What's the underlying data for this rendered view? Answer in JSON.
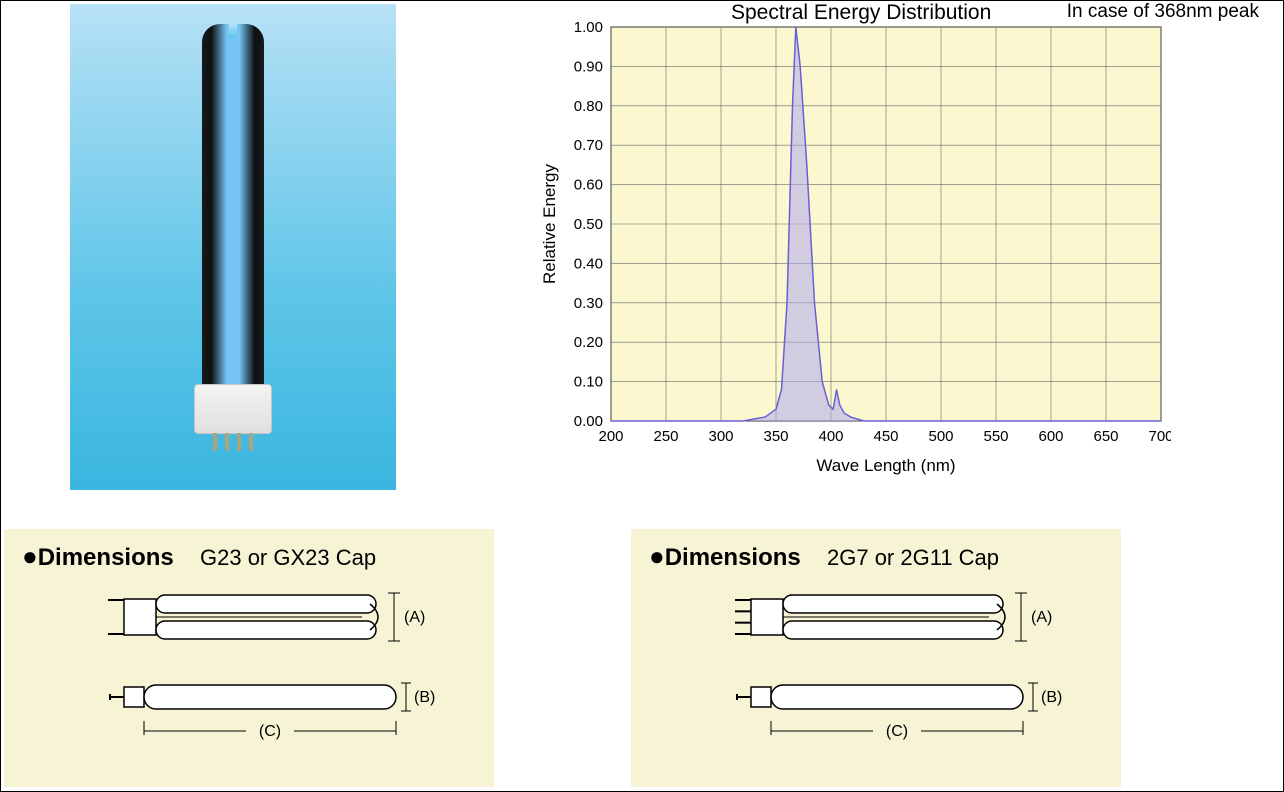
{
  "product_image": {
    "background_gradient_top": "#b7e1f6",
    "background_gradient_bottom": "#3ab6e0",
    "bulb_body_color": "#0d0f10",
    "bulb_glow_color": "#76c6f5",
    "base_color": "#efefee",
    "pin_count": 4
  },
  "chart": {
    "type": "line",
    "title": "Spectral Energy Distribution",
    "note": "In case of 368nm peak",
    "xlabel": "Wave Length (nm)",
    "ylabel": "Relative Energy",
    "xlim": [
      200,
      700
    ],
    "ylim": [
      0.0,
      1.0
    ],
    "xtick_step": 50,
    "ytick_step": 0.1,
    "xticks": [
      200,
      250,
      300,
      350,
      400,
      450,
      500,
      550,
      600,
      650,
      700
    ],
    "yticks": [
      "0.00",
      "0.10",
      "0.20",
      "0.30",
      "0.40",
      "0.50",
      "0.60",
      "0.70",
      "0.80",
      "0.90",
      "1.00"
    ],
    "title_fontsize": 21,
    "label_fontsize": 17,
    "tick_fontsize": 15,
    "plot_background": "#fbf8cf",
    "grid_color": "#6a6a6a",
    "axis_color": "#000000",
    "line_color": "#6a5fd4",
    "fill_color": "#b0a8ef",
    "fill_opacity": 0.55,
    "line_width": 1.5,
    "series_x": [
      200,
      250,
      300,
      320,
      340,
      350,
      355,
      360,
      365,
      368,
      372,
      378,
      385,
      392,
      398,
      402,
      405,
      408,
      412,
      418,
      430,
      450,
      500,
      550,
      600,
      650,
      700
    ],
    "series_y": [
      0.0,
      0.0,
      0.0,
      0.0,
      0.01,
      0.03,
      0.08,
      0.3,
      0.8,
      1.0,
      0.9,
      0.65,
      0.3,
      0.1,
      0.04,
      0.03,
      0.08,
      0.04,
      0.02,
      0.01,
      0.0,
      0.0,
      0.0,
      0.0,
      0.0,
      0.0,
      0.0
    ]
  },
  "dimensions": {
    "heading": "Dimensions",
    "panel_background": "#f6f4d5",
    "outline_color": "#000000",
    "letter_color": "#000000",
    "label_a": "(A)",
    "label_b": "(B)",
    "label_c": "(C)",
    "left": {
      "caption": "G23 or GX23 Cap",
      "pin_count": 2
    },
    "right": {
      "caption": "2G7 or 2G11 Cap",
      "pin_count": 4
    }
  }
}
